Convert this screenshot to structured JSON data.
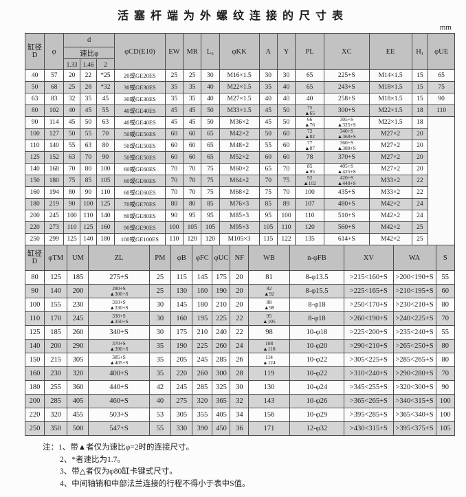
{
  "page": {
    "title": "活塞杆端为外螺纹连接的尺寸表",
    "unit_label": "mm"
  },
  "table1": {
    "headers": {
      "bore": "缸径",
      "bore_d": "D",
      "phi": "φ",
      "d_group": "d",
      "ratio": "速比φ",
      "ratio_1": "1.33",
      "ratio_2": "1.46",
      "ratio_3": "2",
      "cd": "φCD(E10)",
      "ew": "EW",
      "mr": "MR",
      "l6": "L₆",
      "kk": "φKK",
      "a": "A",
      "y": "Y",
      "pl": "PL",
      "xc": "XC",
      "ee": "EE",
      "h1": "H₁",
      "ue": "φUE"
    },
    "rows": [
      [
        "40",
        "57",
        "20",
        "22",
        "*25",
        "20或GE20ES",
        "25",
        "25",
        "30",
        "M16×1.5",
        "30",
        "30",
        "65",
        "225+S",
        "M14×1.5",
        "15",
        "65"
      ],
      [
        "50",
        "68",
        "25",
        "28",
        "*32",
        "30或GE30ES",
        "35",
        "35",
        "40",
        "M22×1.5",
        "35",
        "40",
        "65",
        "243+S",
        "M18×1.5",
        "15",
        "75"
      ],
      [
        "63",
        "83",
        "32",
        "35",
        "45",
        "30或GE30ES",
        "35",
        "35",
        "40",
        "M27×1.5",
        "40",
        "40",
        "40",
        "258+S",
        "M18×1.5",
        "15",
        "90"
      ],
      [
        "80",
        "102",
        "40",
        "45",
        "55",
        "40或GE40ES",
        "45",
        "45",
        "50",
        "M33×1.5",
        "45",
        "50",
        {
          "stack": [
            "75",
            "▲65"
          ]
        },
        "300+S",
        "M22×1.5",
        "18",
        "110"
      ],
      [
        "90",
        "114",
        "45",
        "50",
        "63",
        "40或GE40ES",
        "45",
        "45",
        "50",
        "M36×2",
        "45",
        "50",
        {
          "stack": [
            "66",
            "▲76"
          ]
        },
        {
          "stack": [
            "305+S",
            "▲325+S"
          ]
        },
        "M22×1.5",
        "18",
        {
          "rowspan": 11,
          "text": "",
          "cls": "merged"
        }
      ],
      [
        "100",
        "127",
        "50",
        "55",
        "70",
        "50或GE50ES",
        "60",
        "60",
        "65",
        "M42×2",
        "50",
        "60",
        {
          "stack": [
            "72",
            "▲82"
          ]
        },
        {
          "stack": [
            "340+S",
            "▲360+S"
          ]
        },
        "M27×2",
        "20",
        null
      ],
      [
        "110",
        "140",
        "55",
        "63",
        "80",
        "50或GE50ES",
        "60",
        "60",
        "65",
        "M48×2",
        "55",
        "60",
        {
          "stack": [
            "77",
            "▲87"
          ]
        },
        {
          "stack": [
            "360+S",
            "▲380+S"
          ]
        },
        "M27×2",
        "20",
        null
      ],
      [
        "125",
        "152",
        "63",
        "70",
        "90",
        "50或GE50ES",
        "60",
        "60",
        "65",
        "M52×2",
        "60",
        "60",
        "78",
        "370+S",
        "M27×2",
        "20",
        null
      ],
      [
        "140",
        "168",
        "70",
        "80",
        "100",
        "60或GE60ES",
        "70",
        "70",
        "75",
        "M60×2",
        "65",
        "70",
        {
          "stack": [
            "85",
            "▲95"
          ]
        },
        {
          "stack": [
            "405+S",
            "▲425+S"
          ]
        },
        "M27×2",
        "20",
        null
      ],
      [
        "150",
        "180",
        "75",
        "85",
        "105",
        "60或GE60ES",
        "70",
        "70",
        "75",
        "M64×2",
        "70",
        "75",
        {
          "stack": [
            "92",
            "▲102"
          ]
        },
        {
          "stack": [
            "420+S",
            "▲440+S"
          ]
        },
        "M33×2",
        "22",
        null
      ],
      [
        "160",
        "194",
        "80",
        "90",
        "110",
        "60或GE60ES",
        "70",
        "70",
        "75",
        "M68×2",
        "75",
        "70",
        "100",
        "435+S",
        "M33×2",
        "22",
        null
      ],
      [
        "180",
        "219",
        "90",
        "100",
        "125",
        "70或GE70ES",
        "80",
        "80",
        "85",
        "M76×3",
        "85",
        "89",
        "107",
        "480+S",
        "M42×2",
        "24",
        null
      ],
      [
        "200",
        "245",
        "100",
        "110",
        "140",
        "80或GE80ES",
        "90",
        "95",
        "95",
        "M85×3",
        "95",
        "100",
        "110",
        "510+S",
        "M42×2",
        "24",
        null
      ],
      [
        "220",
        "273",
        "110",
        "125",
        "160",
        "90或GE90ES",
        "100",
        "105",
        "105",
        "M95×3",
        "105",
        "110",
        "120",
        "560+S",
        "M42×2",
        "25",
        null
      ],
      [
        "250",
        "299",
        "125",
        "140",
        "180",
        "100或GE100ES",
        "110",
        "120",
        "120",
        "M105×3",
        "115",
        "122",
        "135",
        "614+S",
        "M42×2",
        "25",
        null
      ]
    ]
  },
  "table2": {
    "headers": {
      "bore": "缸径",
      "bore_d": "D",
      "tm": "φTM",
      "um": "UM",
      "zl": "ZL",
      "pm": "PM",
      "b": "φB",
      "fc": "φFC",
      "uc": "φUC",
      "nf": "NF",
      "wb": "WB",
      "fb": "n-φFB",
      "xv": "XV",
      "wa": "WA",
      "s": "S"
    },
    "rows": [
      [
        "80",
        "125",
        "185",
        "275+S",
        "25",
        "115",
        "145",
        "175",
        "20",
        "81",
        "8-φ13.5",
        ">215<160+S",
        ">200<190+S",
        "55"
      ],
      [
        "90",
        "140",
        "200",
        {
          "stack": [
            "280+S",
            "▲300+S"
          ]
        },
        "25",
        "130",
        "160",
        "190",
        "20",
        {
          "stack": [
            "82",
            "▲92"
          ]
        },
        "8-φ15.5",
        ">225<165+S",
        ">210<195+S",
        "60"
      ],
      [
        "100",
        "155",
        "230",
        {
          "stack": [
            "310+S",
            "▲330+S"
          ]
        },
        "30",
        "145",
        "180",
        "210",
        "20",
        {
          "stack": [
            "88",
            "▲98"
          ]
        },
        "8-φ18",
        ">250<170+S",
        ">230<210+S",
        "80"
      ],
      [
        "110",
        "170",
        "245",
        {
          "stack": [
            "330+S",
            "▲350+S"
          ]
        },
        "30",
        "160",
        "195",
        "225",
        "22",
        {
          "stack": [
            "95",
            "▲105"
          ]
        },
        "8-φ18",
        ">260<190+S",
        ">240<225+S",
        "70"
      ],
      [
        "125",
        "185",
        "260",
        "340+S",
        "30",
        "175",
        "210",
        "240",
        "22",
        "98",
        "10-φ18",
        ">225<200+S",
        ">235<240+S",
        "55"
      ],
      [
        "140",
        "200",
        "290",
        {
          "stack": [
            "370+S",
            "▲390+S"
          ]
        },
        "35",
        "190",
        "225",
        "260",
        "24",
        {
          "stack": [
            "108",
            "▲118"
          ]
        },
        "10-φ20",
        ">290<210+S",
        ">265<250+S",
        "80"
      ],
      [
        "150",
        "215",
        "305",
        {
          "stack": [
            "385+S",
            "▲405+S"
          ]
        },
        "35",
        "205",
        "245",
        "285",
        "26",
        {
          "stack": [
            "114",
            "▲124"
          ]
        },
        "10-φ22",
        ">305<225+S",
        ">285<265+S",
        "80"
      ],
      [
        "160",
        "230",
        "320",
        "400+S",
        "35",
        "220",
        "260",
        "300",
        "28",
        "119",
        "10-φ22",
        ">310<240+S",
        ">290<280+S",
        "70"
      ],
      [
        "180",
        "255",
        "360",
        "440+S",
        "42",
        "245",
        "285",
        "325",
        "30",
        "130",
        "10-φ24",
        ">345<255+S",
        ">320<300+S",
        "90"
      ],
      [
        "200",
        "285",
        "405",
        "460+S",
        "40",
        "275",
        "320",
        "365",
        "32",
        "143",
        "10-φ26",
        ">365<265+S",
        ">340<315+S",
        "100"
      ],
      [
        "220",
        "320",
        "455",
        "503+S",
        "53",
        "305",
        "355",
        "405",
        "34",
        "156",
        "10-φ29",
        ">395<285+S",
        ">365<340+S",
        "100"
      ],
      [
        "250",
        "350",
        "500",
        "547+S",
        "55",
        "330",
        "390",
        "450",
        "36",
        "171",
        "12-φ32",
        ">430<315+S",
        ">395<375+S",
        "105"
      ]
    ]
  },
  "notes": {
    "prefix": "注：",
    "items": [
      "1、带▲者仅为速比φ=2时的连接尺寸。",
      "2、*者速比为1.7。",
      "3、带△者仅为φ80缸卡键式尺寸。",
      "4、中间轴销和中部法兰连接的行程不得小于表中S值。"
    ]
  },
  "colors": {
    "header_bg": "#c2c2c2",
    "stripe_bg": "#d4d4d4",
    "row_bg": "#fbfbfb",
    "border": "#4d4d4d"
  }
}
